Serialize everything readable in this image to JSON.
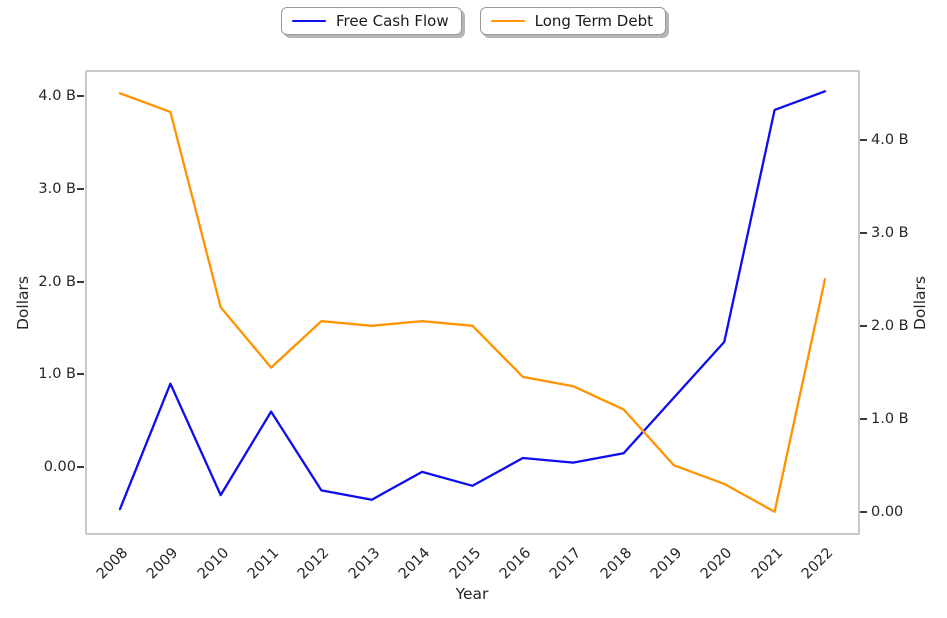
{
  "figure": {
    "background": "#ffffff",
    "plot_border_color": "#c9c9c9",
    "text_color": "#262626"
  },
  "legend": {
    "position": "top-center",
    "items": [
      {
        "label": "Free Cash Flow",
        "color": "#0d0df0",
        "swatch": "line"
      },
      {
        "label": "Long Term Debt",
        "color": "#ff9300",
        "swatch": "line"
      }
    ]
  },
  "chart_data": {
    "type": "line",
    "title": "",
    "xlabel": "Year",
    "ylabel_left": "Dollars",
    "ylabel_right": "Dollars",
    "grid": false,
    "legend_position": "top-center",
    "categories": [
      "2008",
      "2009",
      "2010",
      "2011",
      "2012",
      "2013",
      "2014",
      "2015",
      "2016",
      "2017",
      "2018",
      "2019",
      "2020",
      "2021",
      "2022"
    ],
    "series": [
      {
        "name": "Free Cash Flow",
        "axis": "left",
        "color": "#0d0df0",
        "values": [
          -0.45,
          0.9,
          -0.3,
          0.6,
          -0.25,
          -0.35,
          -0.05,
          -0.2,
          0.1,
          0.05,
          0.15,
          0.75,
          1.35,
          3.85,
          4.05
        ]
      },
      {
        "name": "Long Term Debt",
        "axis": "right",
        "color": "#ff9300",
        "values": [
          4.5,
          4.3,
          2.2,
          1.55,
          2.05,
          2.0,
          2.05,
          2.0,
          1.45,
          1.35,
          1.1,
          0.5,
          0.3,
          0.0,
          2.5
        ]
      }
    ],
    "left_axis": {
      "ticks": [
        0,
        1,
        2,
        3,
        4
      ],
      "tick_labels": [
        "0.00",
        "1.0 B",
        "2.0 B",
        "3.0 B",
        "4.0 B"
      ],
      "lim": [
        -0.73,
        4.28
      ]
    },
    "right_axis": {
      "ticks": [
        0,
        1,
        2,
        3,
        4
      ],
      "tick_labels": [
        "0.00",
        "1.0 B",
        "2.0 B",
        "3.0 B",
        "4.0 B"
      ],
      "lim": [
        -0.25,
        4.75
      ]
    }
  }
}
